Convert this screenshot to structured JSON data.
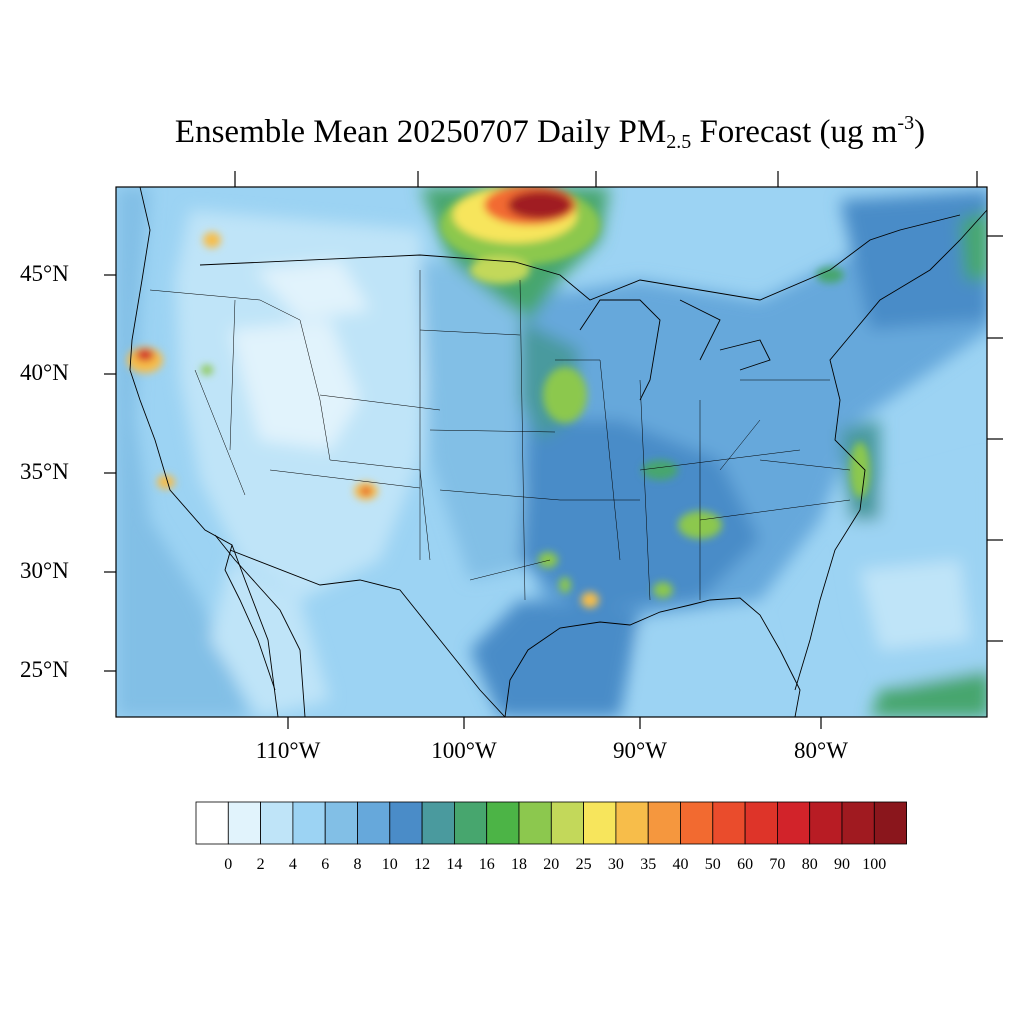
{
  "title": {
    "main": "Ensemble Mean 20250707 Daily PM",
    "sub": "2.5",
    "mid": " Forecast (ug m",
    "sup": "-3",
    "end": ")"
  },
  "map": {
    "lat_labels": [
      "45°N",
      "40°N",
      "35°N",
      "30°N",
      "25°N"
    ],
    "lon_labels": [
      "110°W",
      "100°W",
      "90°W",
      "80°W"
    ]
  },
  "colorbar": {
    "labels": [
      "0",
      "2",
      "4",
      "6",
      "8",
      "10",
      "12",
      "14",
      "16",
      "18",
      "20",
      "25",
      "30",
      "35",
      "40",
      "50",
      "60",
      "70",
      "80",
      "90",
      "100"
    ],
    "colors": [
      "#ffffff",
      "#e1f3fc",
      "#bfe4f8",
      "#9cd3f3",
      "#82bfe6",
      "#66a8db",
      "#4a8cc8",
      "#4a9a9e",
      "#47a66e",
      "#4cb446",
      "#8cc84e",
      "#c3d85a",
      "#f7e55c",
      "#f7bd4a",
      "#f5973e",
      "#f26a30",
      "#ea4c2c",
      "#de3429",
      "#d2232a",
      "#b81c24",
      "#a01a20",
      "#8a161c"
    ]
  }
}
